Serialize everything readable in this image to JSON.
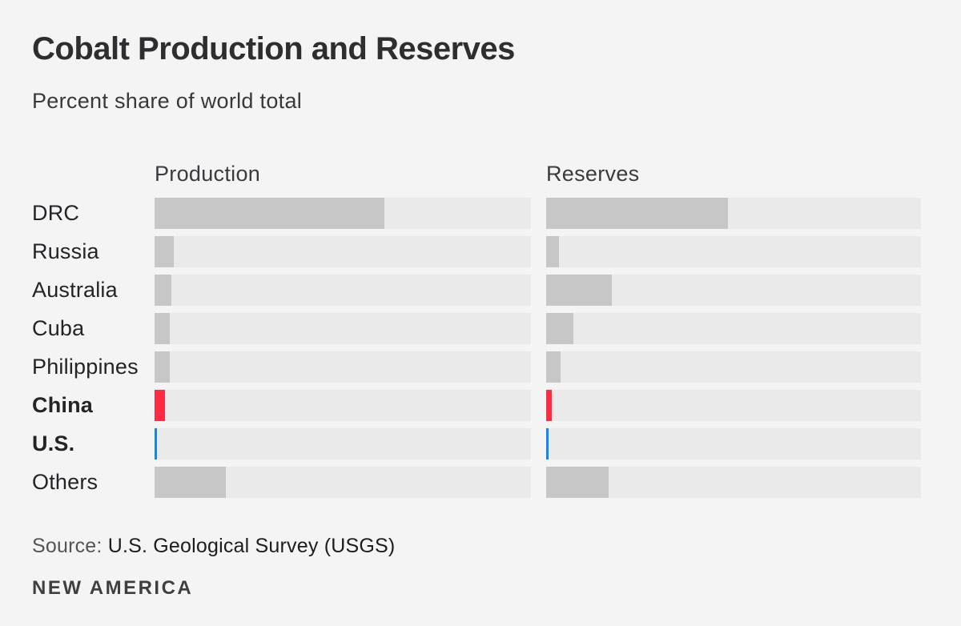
{
  "header": {
    "title": "Cobalt Production and Reserves",
    "subtitle": "Percent share of world total"
  },
  "chart": {
    "column_headers": [
      "Production",
      "Reserves"
    ],
    "rows": [
      {
        "label": "DRC",
        "production": 61,
        "reserves": 48.5,
        "color": "#c7c7c8",
        "bold": false
      },
      {
        "label": "Russia",
        "production": 5,
        "reserves": 3.4,
        "color": "#c7c7c8",
        "bold": false
      },
      {
        "label": "Australia",
        "production": 4.5,
        "reserves": 17.5,
        "color": "#c7c7c8",
        "bold": false
      },
      {
        "label": "Cuba",
        "production": 4,
        "reserves": 7.3,
        "color": "#c7c7c8",
        "bold": false
      },
      {
        "label": "Philippines",
        "production": 4,
        "reserves": 3.8,
        "color": "#c7c7c8",
        "bold": false
      },
      {
        "label": "China",
        "production": 2.8,
        "reserves": 1.5,
        "color": "#ff2b43",
        "bold": true
      },
      {
        "label": "U.S.",
        "production": 0.6,
        "reserves": 0.6,
        "color": "#0e86f8",
        "bold": true
      },
      {
        "label": "Others",
        "production": 19,
        "reserves": 16.7,
        "color": "#c7c7c8",
        "bold": false
      }
    ]
  },
  "footer": {
    "source_label": "Source:",
    "source_text": "U.S. Geological Survey (USGS)",
    "logo": "NEW AMERICA"
  },
  "colors": {
    "background": "#f4f4f5",
    "bar_track": "#eaeaea",
    "fill_gray": "#c7c7c8",
    "china_red": "#ff2b43",
    "us_blue": "#0e86f8"
  },
  "chart_data": {
    "type": "bar",
    "title": "Cobalt Production and Reserves",
    "subtitle": "Percent share of world total",
    "unit": "percent",
    "orientation": "horizontal",
    "categories": [
      "DRC",
      "Russia",
      "Australia",
      "Cuba",
      "Philippines",
      "China",
      "U.S.",
      "Others"
    ],
    "series": [
      {
        "name": "Production",
        "values": [
          61,
          5,
          4.5,
          4,
          4,
          2.8,
          0.6,
          19
        ]
      },
      {
        "name": "Reserves",
        "values": [
          48.5,
          3.4,
          17.5,
          7.3,
          3.8,
          1.5,
          0.6,
          16.7
        ]
      }
    ],
    "xlim": [
      0,
      100
    ],
    "grid": false,
    "legend_position": "column titles above each panel",
    "highlighted_categories": {
      "China": "#ff2b43",
      "U.S.": "#0e86f8"
    },
    "source": "U.S. Geological Survey (USGS)"
  }
}
